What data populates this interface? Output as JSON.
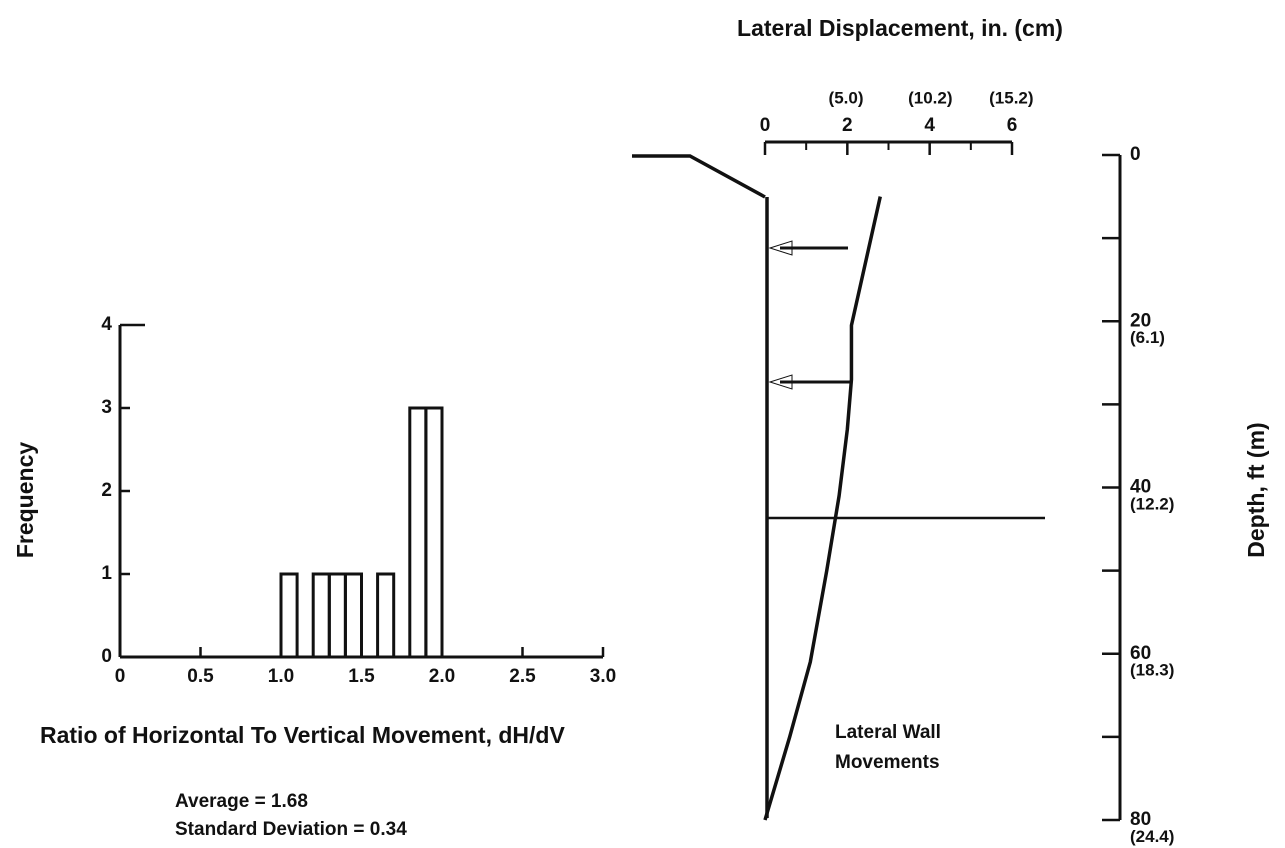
{
  "chart_data": [
    {
      "type": "histogram",
      "xlabel": "Ratio of Horizontal To Vertical Movement, dH/dV",
      "ylabel": "Frequency",
      "bins": [
        1.0,
        1.1,
        1.2,
        1.3,
        1.4,
        1.5,
        1.6,
        1.7,
        1.8,
        1.9,
        2.0
      ],
      "counts": [
        1,
        0,
        1,
        1,
        1,
        0,
        1,
        0,
        3,
        3
      ],
      "xlim": [
        0,
        3
      ],
      "xticks": [
        0,
        0.5,
        {
          "value": 1,
          "label": "1.0"
        },
        1.5,
        {
          "value": 2,
          "label": "2.0"
        },
        2.5,
        {
          "value": 3,
          "label": "3.0"
        }
      ],
      "ylim": [
        0,
        4
      ],
      "yticks": [
        0,
        1,
        2,
        3,
        4
      ],
      "annotations": [
        "Average = 1.68",
        "Standard Deviation = 0.34"
      ]
    },
    {
      "type": "profile",
      "title": "Lateral Displacement, in. (cm)",
      "ylabel": "Depth, ft (m)",
      "annotation": [
        "Lateral Wall",
        "Movements"
      ],
      "values": [
        2.8,
        2.1,
        2.1,
        2.0,
        1.8,
        1.5,
        1.1,
        0.6,
        0
      ],
      "depth": [
        5,
        20.5,
        27,
        33,
        41,
        50,
        61,
        70,
        80
      ],
      "xlim": [
        0,
        6
      ],
      "xticks": [
        0,
        2,
        4,
        6
      ],
      "xminor": [
        1,
        3,
        5
      ],
      "x2lim": [
        0,
        15.24
      ],
      "x2ticks": [
        {
          "value": 5.0,
          "label": "(5.0)"
        },
        {
          "value": 10.2,
          "label": "(10.2)"
        },
        {
          "value": 15.2,
          "label": "(15.2)"
        }
      ],
      "ylim": [
        0,
        80
      ],
      "yticks": [
        0,
        20,
        40,
        60,
        80
      ],
      "yminor": [
        10,
        30,
        50,
        70
      ],
      "y2lim": [
        0,
        24.38
      ],
      "y2ticks": [
        {
          "value": 6.1,
          "label": "(6.1)"
        },
        {
          "value": 12.2,
          "label": "(12.2)"
        },
        {
          "value": 18.3,
          "label": "(18.3)"
        },
        {
          "value": 24.4,
          "label": "(24.4)"
        }
      ]
    }
  ]
}
